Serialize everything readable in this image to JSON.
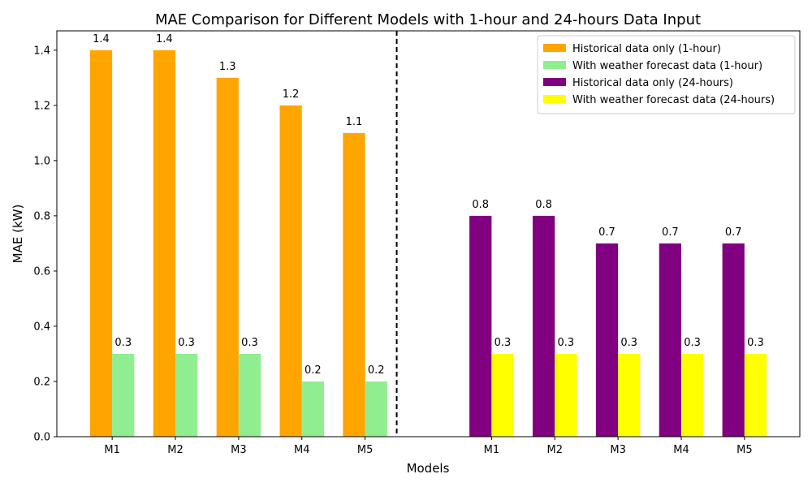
{
  "chart_data": {
    "type": "bar",
    "title": "MAE Comparison for Different Models with 1-hour and 24-hours Data Input",
    "xlabel": "Models",
    "ylabel": "MAE (kW)",
    "ylim": [
      0,
      1.47
    ],
    "yticks": [
      "0.0",
      "0.2",
      "0.4",
      "0.6",
      "0.8",
      "1.0",
      "1.2",
      "1.4"
    ],
    "groups": [
      {
        "categories": [
          "M1",
          "M2",
          "M3",
          "M4",
          "M5"
        ],
        "series": [
          {
            "name": "Historical data only (1-hour)",
            "color": "#FFA500",
            "values": [
              1.4,
              1.4,
              1.3,
              1.2,
              1.1
            ],
            "labels": [
              "1.4",
              "1.4",
              "1.3",
              "1.2",
              "1.1"
            ]
          },
          {
            "name": "With weather forecast data (1-hour)",
            "color": "#90EE90",
            "values": [
              0.3,
              0.3,
              0.3,
              0.2,
              0.2
            ],
            "labels": [
              "0.3",
              "0.3",
              "0.3",
              "0.2",
              "0.2"
            ]
          }
        ]
      },
      {
        "categories": [
          "M1",
          "M2",
          "M3",
          "M4",
          "M5"
        ],
        "series": [
          {
            "name": "Historical data only (24-hours)",
            "color": "#800080",
            "values": [
              0.8,
              0.8,
              0.7,
              0.7,
              0.7
            ],
            "labels": [
              "0.8",
              "0.8",
              "0.7",
              "0.7",
              "0.7"
            ]
          },
          {
            "name": "With weather forecast data (24-hours)",
            "color": "#FFFF00",
            "values": [
              0.3,
              0.3,
              0.3,
              0.3,
              0.3
            ],
            "labels": [
              "0.3",
              "0.3",
              "0.3",
              "0.3",
              "0.3"
            ]
          }
        ]
      }
    ],
    "separator": {
      "style": "dashed",
      "color": "#000000"
    },
    "legend_position": "top-right",
    "grid": false
  }
}
